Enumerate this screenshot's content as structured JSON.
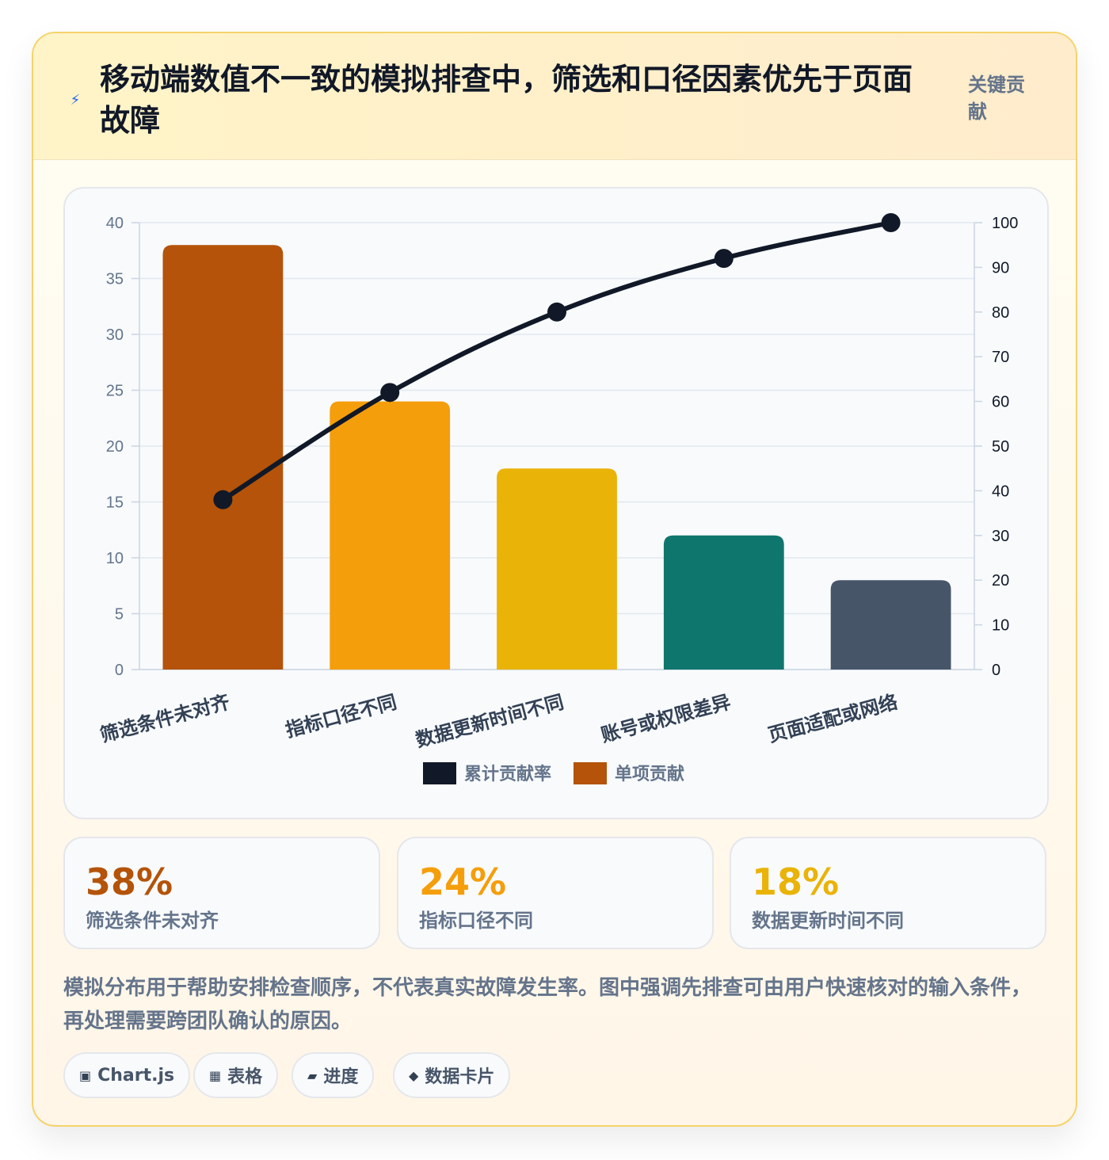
{
  "header": {
    "icon": "lightning-icon",
    "title": "移动端数值不一致的模拟排查中，筛选和口径因素优先于页面故障",
    "tag": "关键贡献"
  },
  "chart_data": {
    "type": "bar",
    "categories": [
      "筛选条件未对齐",
      "指标口径不同",
      "数据更新时间不同",
      "账号或权限差异",
      "页面适配或网络"
    ],
    "series": [
      {
        "name": "单项贡献",
        "type": "bar",
        "axis": "left",
        "values": [
          38,
          24,
          18,
          12,
          8
        ]
      },
      {
        "name": "累计贡献率",
        "type": "line",
        "axis": "right",
        "values": [
          38,
          62,
          80,
          92,
          100
        ]
      }
    ],
    "bar_colors": [
      "#b45309",
      "#f59e0b",
      "#eab308",
      "#0f766e",
      "#475569"
    ],
    "line_color": "#111827",
    "legend": [
      {
        "label": "累计贡献率",
        "color": "#111827"
      },
      {
        "label": "单项贡献",
        "color": "#b45309"
      }
    ],
    "legend_position": "bottom",
    "y_left": {
      "min": 0,
      "max": 40,
      "ticks": [
        0,
        5,
        10,
        15,
        20,
        25,
        30,
        35,
        40
      ]
    },
    "y_right": {
      "min": 0,
      "max": 100,
      "ticks": [
        0,
        10,
        20,
        30,
        40,
        50,
        60,
        70,
        80,
        90,
        100
      ]
    },
    "grid": true
  },
  "stats": [
    {
      "value": "38%",
      "label": "筛选条件未对齐",
      "color": "#b45309"
    },
    {
      "value": "24%",
      "label": "指标口径不同",
      "color": "#f59e0b"
    },
    {
      "value": "18%",
      "label": "数据更新时间不同",
      "color": "#eab308"
    }
  ],
  "note": "模拟分布用于帮助安排检查顺序，不代表真实故障发生率。图中强调先排查可由用户快速核对的输入条件，再处理需要跨团队确认的原因。",
  "pills": [
    {
      "icon": "chart-icon",
      "glyph": "▣",
      "label": "Chart.js"
    },
    {
      "icon": "table-icon",
      "glyph": "▦",
      "label": "表格"
    },
    {
      "icon": "progress-icon",
      "glyph": "▰",
      "label": "进度"
    },
    {
      "icon": "data-card-icon",
      "glyph": "◆",
      "label": "数据卡片"
    }
  ]
}
